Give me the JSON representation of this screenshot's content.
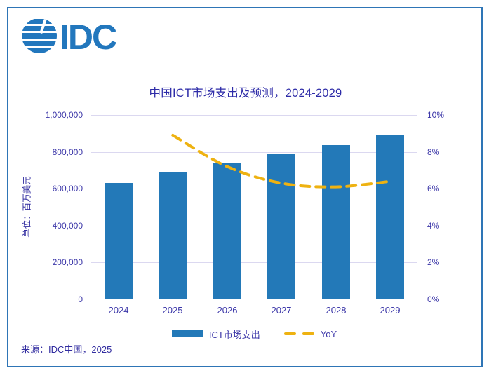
{
  "logo": {
    "company": "IDC",
    "color": "#2277bd",
    "icon": "striped-globe"
  },
  "source": {
    "text": "来源：IDC中国，2025"
  },
  "colors": {
    "frame_border": "#2e75b6",
    "title_text": "#2e2ca8",
    "axis_text": "#3b36a8",
    "gridline": "#dbd8f0",
    "bar": "#2379b8",
    "line": "#eeb211",
    "background": "#ffffff"
  },
  "chart_data": {
    "type": "bar",
    "subtype": "combo-bar-and-dashed-line",
    "title": "中国ICT市场支出及预测，2024-2029",
    "categories": [
      "2024",
      "2025",
      "2026",
      "2027",
      "2028",
      "2029"
    ],
    "series": [
      {
        "name": "ICT市场支出",
        "type": "bar",
        "axis": "left",
        "color": "#2379b8",
        "values": [
          632000,
          689000,
          741000,
          786000,
          836000,
          889000
        ]
      },
      {
        "name": "YoY",
        "type": "dashed-line",
        "axis": "right",
        "color": "#eeb211",
        "unit": "%",
        "values": [
          null,
          8.9,
          7.2,
          6.3,
          6.1,
          6.4
        ]
      }
    ],
    "left_axis": {
      "label": "单位：百万美元",
      "min": 0,
      "max": 1000000,
      "ticks_top_to_bottom": [
        "1,000,000",
        "800,000",
        "600,000",
        "400,000",
        "200,000",
        "0"
      ]
    },
    "right_axis": {
      "min": 0,
      "max": 10,
      "ticks_top_to_bottom": [
        "10%",
        "8%",
        "6%",
        "4%",
        "2%",
        "0%"
      ]
    },
    "grid": "horizontal",
    "legend_position": "bottom"
  }
}
